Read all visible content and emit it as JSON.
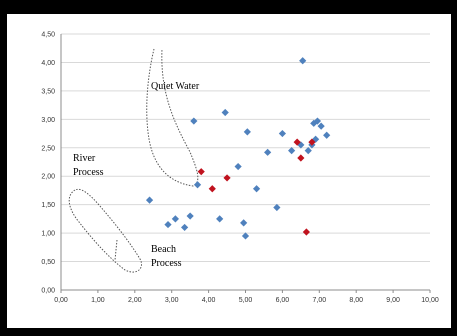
{
  "chart_data": {
    "type": "scatter",
    "title": "",
    "xlabel": "",
    "ylabel": "",
    "xlim": [
      0,
      10
    ],
    "ylim": [
      0,
      4.5
    ],
    "x_ticks": [
      "0,00",
      "1,00",
      "2,00",
      "3,00",
      "4,00",
      "5,00",
      "6,00",
      "7,00",
      "8,00",
      "9,00",
      "10,00"
    ],
    "y_ticks": [
      "0,00",
      "0,50",
      "1,00",
      "1,50",
      "2,00",
      "2,50",
      "3,00",
      "3,50",
      "4,00",
      "4,50"
    ],
    "grid": true,
    "series": [
      {
        "color": "#4f81bd",
        "marker": "diamond",
        "points": [
          [
            2.4,
            1.58
          ],
          [
            2.9,
            1.15
          ],
          [
            3.1,
            1.25
          ],
          [
            3.35,
            1.1
          ],
          [
            3.5,
            1.3
          ],
          [
            3.6,
            2.97
          ],
          [
            3.7,
            1.85
          ],
          [
            4.3,
            1.25
          ],
          [
            4.45,
            3.12
          ],
          [
            4.8,
            2.17
          ],
          [
            4.95,
            1.18
          ],
          [
            5.0,
            0.95
          ],
          [
            5.05,
            2.78
          ],
          [
            5.3,
            1.78
          ],
          [
            5.6,
            2.42
          ],
          [
            5.85,
            1.45
          ],
          [
            6.0,
            2.75
          ],
          [
            6.25,
            2.45
          ],
          [
            6.5,
            2.55
          ],
          [
            6.55,
            4.03
          ],
          [
            6.7,
            2.45
          ],
          [
            6.8,
            2.55
          ],
          [
            6.85,
            2.93
          ],
          [
            6.9,
            2.65
          ],
          [
            6.95,
            2.97
          ],
          [
            7.05,
            2.88
          ],
          [
            7.2,
            2.72
          ]
        ]
      },
      {
        "color": "#c0121e",
        "marker": "diamond",
        "points": [
          [
            3.8,
            2.08
          ],
          [
            4.1,
            1.78
          ],
          [
            4.5,
            1.97
          ],
          [
            6.4,
            2.6
          ],
          [
            6.5,
            2.32
          ],
          [
            6.8,
            2.6
          ],
          [
            6.65,
            1.02
          ]
        ]
      }
    ],
    "annotations": {
      "quiet_water": "Quiet Water",
      "river_line1": "River",
      "river_line2": "Process",
      "beach_line1": "Beach",
      "beach_line2": "Process"
    }
  }
}
